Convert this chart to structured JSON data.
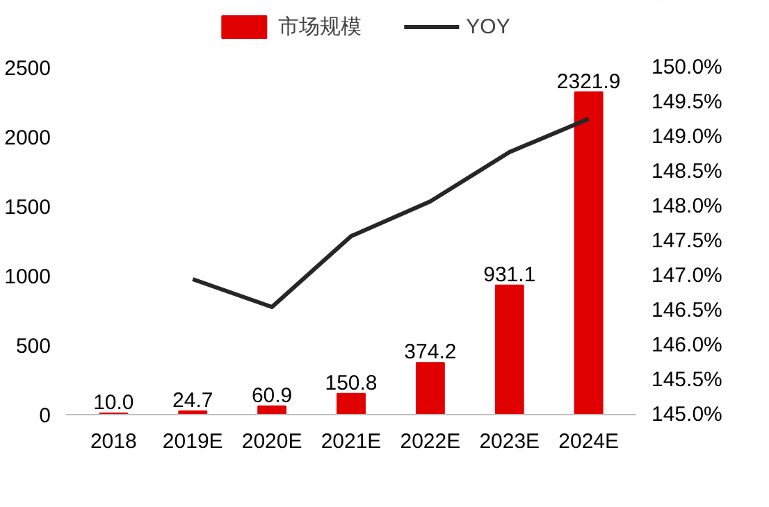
{
  "chart_data": {
    "type": "bar",
    "categories": [
      "2018",
      "2019E",
      "2020E",
      "2021E",
      "2022E",
      "2023E",
      "2024E"
    ],
    "series": [
      {
        "name": "市场规模",
        "color": "#e00000",
        "values": [
          10.0,
          24.7,
          60.9,
          150.8,
          374.2,
          931.1,
          2321.9
        ],
        "value_labels": [
          "10.0",
          "24.7",
          "60.9",
          "150.8",
          "374.2",
          "931.1",
          "2321.9"
        ]
      },
      {
        "name": "YOY",
        "type": "line",
        "axis": "y2",
        "color": "#262626",
        "values": [
          null,
          146.95,
          146.55,
          147.57,
          148.07,
          148.78,
          149.26
        ]
      }
    ],
    "ylim": [
      0,
      2500
    ],
    "yticks": [
      0,
      500,
      1000,
      1500,
      2000,
      2500
    ],
    "y2lim": [
      145,
      150
    ],
    "y2ticks": [
      {
        "value": 145,
        "label": "145.0%"
      },
      {
        "value": 145.5,
        "label": "145.5%"
      },
      {
        "value": 146,
        "label": "146.0%"
      },
      {
        "value": 146.5,
        "label": "146.5%"
      },
      {
        "value": 147,
        "label": "147.0%"
      },
      {
        "value": 147.5,
        "label": "147.5%"
      },
      {
        "value": 148,
        "label": "148.0%"
      },
      {
        "value": 148.5,
        "label": "148.5%"
      },
      {
        "value": 149,
        "label": "149.0%"
      },
      {
        "value": 149.5,
        "label": "149.5%"
      },
      {
        "value": 150,
        "label": "150.0%"
      }
    ],
    "legend": "top",
    "grid": false
  }
}
